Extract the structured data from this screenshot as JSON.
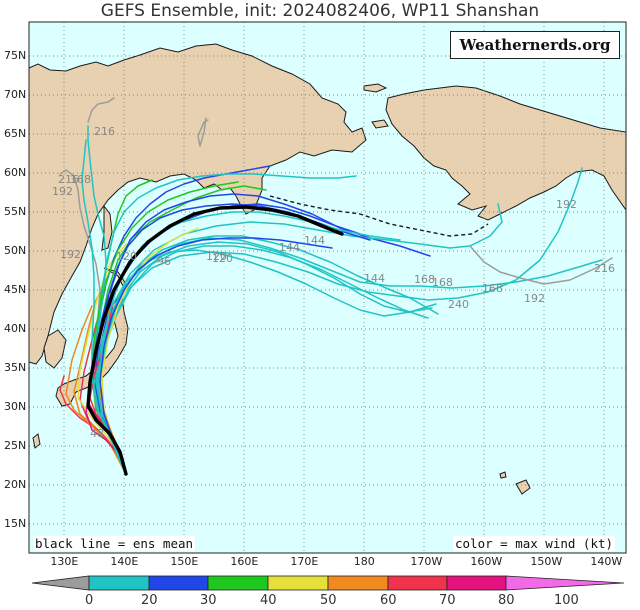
{
  "title": "GEFS Ensemble, init: 2024082406, WP11 Shanshan",
  "credit": "Weathernerds.org",
  "notes": {
    "left": "black line = ens mean",
    "right": "color = max wind (kt)"
  },
  "map": {
    "longitude_labels": [
      "130E",
      "140E",
      "150E",
      "160E",
      "170E",
      "180",
      "170W",
      "160W",
      "150W",
      "140W"
    ],
    "latitude_labels": [
      "15N",
      "20N",
      "25N",
      "30N",
      "35N",
      "40N",
      "45N",
      "50N",
      "55N",
      "60N",
      "65N",
      "70N",
      "75N"
    ],
    "colors": {
      "ocean": "#dcffff",
      "land": "#e7d1b1",
      "coast": "#1a1a1a",
      "grid": "#666666",
      "mean_track": "#000000",
      "forecast_hour_label": "#888888"
    }
  },
  "colorbar": {
    "label_values": [
      "0",
      "20",
      "30",
      "40",
      "50",
      "60",
      "70",
      "80",
      "100"
    ],
    "bins": [
      {
        "range": "0-20",
        "color": "#9c9c9c"
      },
      {
        "range": "20-30",
        "color": "#21c4c4"
      },
      {
        "range": "30-40",
        "color": "#2146e8"
      },
      {
        "range": "40-50",
        "color": "#1fc81f"
      },
      {
        "range": "50-60",
        "color": "#e6e03a"
      },
      {
        "range": "60-70",
        "color": "#f0891e"
      },
      {
        "range": "70-80",
        "color": "#f0324a"
      },
      {
        "range": "80-100",
        "color": "#e3127f"
      },
      {
        "range": "100+",
        "color": "#f26ae8"
      }
    ]
  },
  "forecast_hour_labels": [
    "216",
    "192",
    "168",
    "144",
    "120",
    "96",
    "168",
    "144",
    "120",
    "192",
    "144",
    "216",
    "168",
    "240",
    "168",
    "192",
    "192",
    "216",
    "48",
    "120"
  ]
}
